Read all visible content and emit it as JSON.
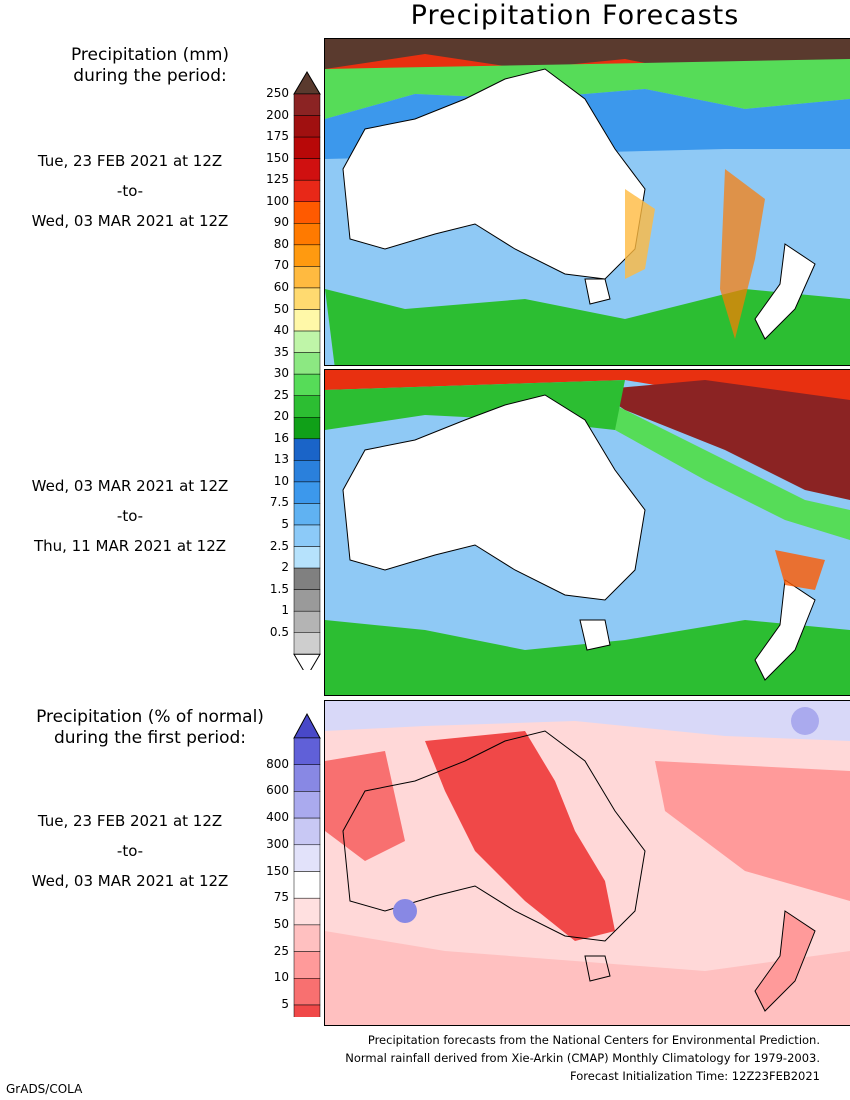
{
  "title": "Precipitation Forecasts",
  "precip_legend": {
    "heading_line1": "Precipitation (mm)",
    "heading_line2": "during the period:",
    "ticks": [
      "250",
      "200",
      "175",
      "150",
      "125",
      "100",
      "90",
      "80",
      "70",
      "60",
      "50",
      "40",
      "35",
      "30",
      "25",
      "20",
      "16",
      "13",
      "10",
      "7.5",
      "5",
      "2.5",
      "2",
      "1.5",
      "1",
      "0.5"
    ],
    "colors": [
      "#8b2323",
      "#a01010",
      "#b80808",
      "#d01010",
      "#e82818",
      "#ff5a00",
      "#ff7a00",
      "#ff9a10",
      "#ffba40",
      "#ffda70",
      "#fff8a8",
      "#bff5a8",
      "#8ce882",
      "#56dc58",
      "#2cbe32",
      "#10a018",
      "#1a64c8",
      "#2a80dc",
      "#3c98ec",
      "#60b2f2",
      "#8ccaf8",
      "#b6e2fc",
      "#808080",
      "#9a9a9a",
      "#b4b4b4",
      "#cecece"
    ],
    "top_color": "#5a3a2e"
  },
  "period1": {
    "start": "Tue, 23 FEB 2021 at 12Z",
    "sep": "-to-",
    "end": "Wed, 03 MAR 2021 at 12Z"
  },
  "period2": {
    "start": "Wed, 03 MAR 2021 at 12Z",
    "sep": "-to-",
    "end": "Thu, 11 MAR 2021 at 12Z"
  },
  "normal_legend": {
    "heading_line1": "Precipitation (% of normal)",
    "heading_line2": "during the first period:",
    "ticks": [
      "800",
      "600",
      "400",
      "300",
      "150",
      "75",
      "50",
      "25",
      "10",
      "5"
    ],
    "colors": [
      "#6060d8",
      "#8888e4",
      "#aaaaee",
      "#c8c8f4",
      "#e2e2fa",
      "#ffffff",
      "#ffe0e0",
      "#ffc0c0",
      "#ff9a9a",
      "#f87070",
      "#f04848"
    ],
    "top_color": "#4848c8",
    "bottom_color": "#e83030"
  },
  "period3": {
    "start": "Tue, 23 FEB 2021 at 12Z",
    "sep": "-to-",
    "end": "Wed, 03 MAR 2021 at 12Z"
  },
  "footer": {
    "line1": "Precipitation forecasts from the National Centers for Environmental Prediction.",
    "line2": "Normal rainfall derived from Xie-Arkin (CMAP) Monthly Climatology for 1979-2003.",
    "line3": "Forecast Initialization Time: 12Z23FEB2021"
  },
  "credit": "GrADS/COLA"
}
